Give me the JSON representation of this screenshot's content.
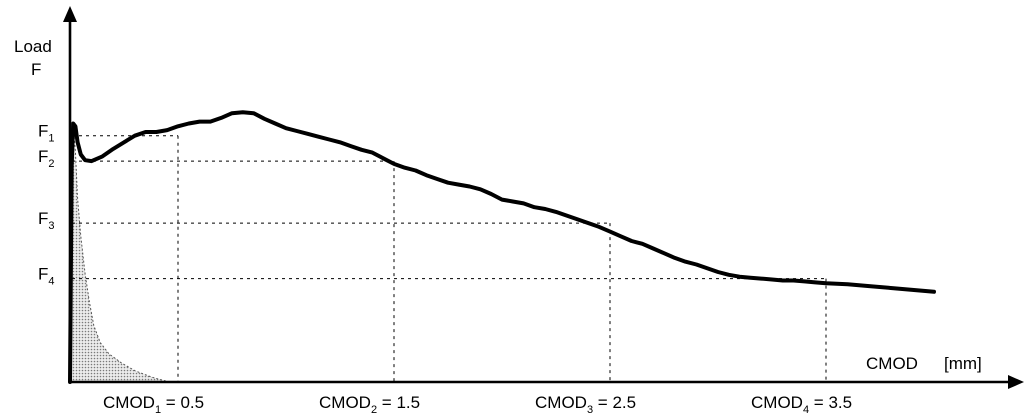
{
  "chart_data": {
    "type": "line",
    "title": "",
    "ylabel_line1": "Load",
    "ylabel_line2": "F",
    "xlabel": "CMOD",
    "xunit": "[mm]",
    "xlim": [
      0,
      4.0
    ],
    "grid": false,
    "series": [
      {
        "x": [
          0,
          0.008,
          0.015,
          0.025,
          0.035,
          0.05,
          0.07,
          0.1,
          0.15,
          0.2,
          0.25,
          0.3,
          0.35,
          0.4,
          0.45,
          0.5,
          0.55,
          0.6,
          0.65,
          0.7,
          0.75,
          0.8,
          0.85,
          0.9,
          0.95,
          1.0,
          1.05,
          1.1,
          1.15,
          1.2,
          1.25,
          1.3,
          1.35,
          1.4,
          1.45,
          1.5,
          1.55,
          1.6,
          1.65,
          1.7,
          1.75,
          1.8,
          1.85,
          1.9,
          1.95,
          2.0,
          2.05,
          2.1,
          2.15,
          2.2,
          2.25,
          2.3,
          2.35,
          2.4,
          2.45,
          2.5,
          2.55,
          2.6,
          2.65,
          2.7,
          2.75,
          2.8,
          2.85,
          2.9,
          2.95,
          3.0,
          3.05,
          3.1,
          3.15,
          3.2,
          3.25,
          3.3,
          3.35,
          3.4,
          3.45,
          3.5,
          3.6,
          3.7,
          3.8,
          3.9,
          4.0
        ],
        "y": [
          0,
          2.3,
          2.75,
          2.72,
          2.55,
          2.42,
          2.36,
          2.35,
          2.4,
          2.48,
          2.55,
          2.62,
          2.66,
          2.66,
          2.68,
          2.72,
          2.75,
          2.77,
          2.77,
          2.81,
          2.86,
          2.87,
          2.86,
          2.8,
          2.75,
          2.7,
          2.67,
          2.64,
          2.61,
          2.58,
          2.55,
          2.51,
          2.47,
          2.44,
          2.38,
          2.32,
          2.28,
          2.25,
          2.2,
          2.16,
          2.12,
          2.1,
          2.08,
          2.05,
          2.0,
          1.94,
          1.92,
          1.9,
          1.86,
          1.84,
          1.81,
          1.77,
          1.73,
          1.69,
          1.65,
          1.6,
          1.55,
          1.5,
          1.47,
          1.42,
          1.37,
          1.32,
          1.28,
          1.25,
          1.21,
          1.17,
          1.14,
          1.12,
          1.11,
          1.1,
          1.09,
          1.08,
          1.08,
          1.07,
          1.06,
          1.05,
          1.04,
          1.02,
          1.0,
          0.98,
          0.96
        ]
      }
    ],
    "shaded_area": {
      "x": [
        0,
        0.008,
        0.015,
        0.025,
        0.035,
        0.05,
        0.07,
        0.09,
        0.11,
        0.14,
        0.18,
        0.24,
        0.3,
        0.38,
        0.46
      ],
      "y": [
        0,
        2.3,
        2.75,
        2.45,
        1.95,
        1.55,
        1.15,
        0.85,
        0.6,
        0.42,
        0.3,
        0.2,
        0.12,
        0.05,
        0.0
      ]
    },
    "force_markers": [
      {
        "main": "F",
        "sub": "1",
        "value": 2.62
      },
      {
        "main": "F",
        "sub": "2",
        "value": 2.35
      },
      {
        "main": "F",
        "sub": "3",
        "value": 1.69
      },
      {
        "main": "F",
        "sub": "4",
        "value": 1.1
      }
    ],
    "cmod_markers": [
      {
        "main": "CMOD",
        "sub": "1",
        "rest": " = 0.5",
        "value": 0.5
      },
      {
        "main": "CMOD",
        "sub": "2",
        "rest": " = 1.5",
        "value": 1.5
      },
      {
        "main": "CMOD",
        "sub": "3",
        "rest": " = 2.5",
        "value": 2.5
      },
      {
        "main": "CMOD",
        "sub": "4",
        "rest": " = 3.5",
        "value": 3.5
      }
    ],
    "colors": {
      "curve": "#000000",
      "fill": "#d9d9d9"
    }
  }
}
